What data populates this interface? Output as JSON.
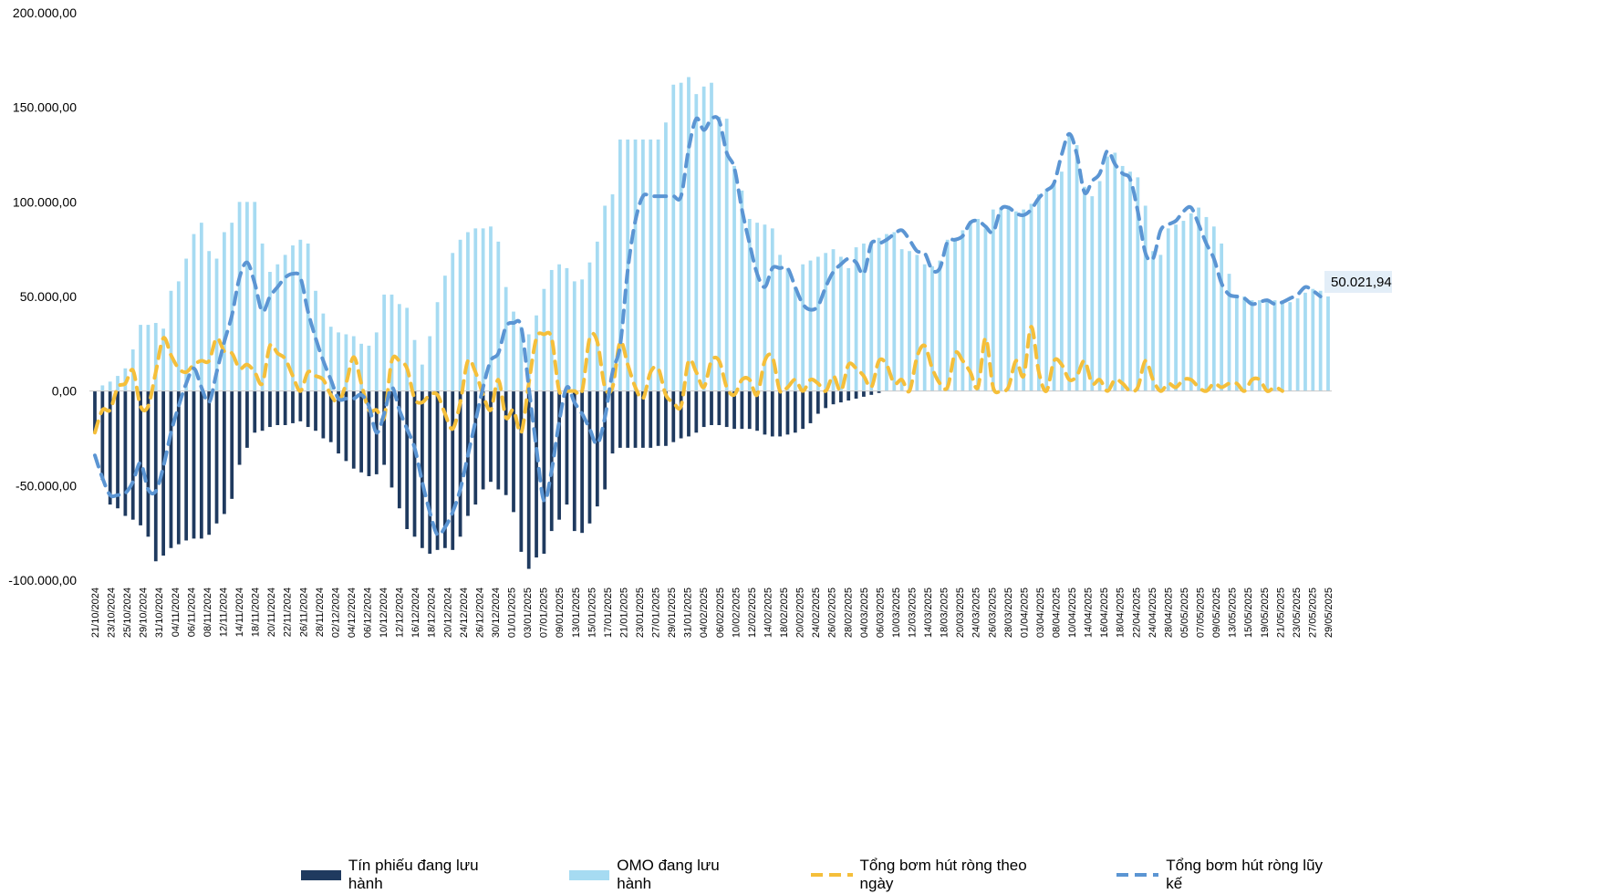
{
  "chart_data": {
    "type": "bar",
    "ylim": [
      -100000,
      200000
    ],
    "y_ticks": [
      {
        "value": 200000,
        "label": "200.000,00"
      },
      {
        "value": 150000,
        "label": "150.000,00"
      },
      {
        "value": 100000,
        "label": "100.000,00"
      },
      {
        "value": 50000,
        "label": "50.000,00"
      },
      {
        "value": 0,
        "label": "0,00"
      },
      {
        "value": -50000,
        "label": "-50.000,00"
      },
      {
        "value": -100000,
        "label": "-100.000,00"
      }
    ],
    "x_tick_labels": [
      "21/10/2024",
      "23/10/2024",
      "25/10/2024",
      "29/10/2024",
      "31/10/2024",
      "04/11/2024",
      "06/11/2024",
      "08/11/2024",
      "12/11/2024",
      "14/11/2024",
      "18/11/2024",
      "20/11/2024",
      "22/11/2024",
      "26/11/2024",
      "28/11/2024",
      "02/12/2024",
      "04/12/2024",
      "06/12/2024",
      "10/12/2024",
      "12/12/2024",
      "16/12/2024",
      "18/12/2024",
      "20/12/2024",
      "24/12/2024",
      "26/12/2024",
      "30/12/2024",
      "01/01/2025",
      "03/01/2025",
      "07/01/2025",
      "09/01/2025",
      "13/01/2025",
      "15/01/2025",
      "17/01/2025",
      "21/01/2025",
      "23/01/2025",
      "27/01/2025",
      "29/01/2025",
      "31/01/2025",
      "04/02/2025",
      "06/02/2025",
      "10/02/2025",
      "12/02/2025",
      "14/02/2025",
      "18/02/2025",
      "20/02/2025",
      "24/02/2025",
      "26/02/2025",
      "28/02/2025",
      "04/03/2025",
      "06/03/2025",
      "10/03/2025",
      "12/03/2025",
      "14/03/2025",
      "18/03/2025",
      "20/03/2025",
      "24/03/2025",
      "26/03/2025",
      "28/03/2025",
      "01/04/2025",
      "03/04/2025",
      "08/04/2025",
      "10/04/2025",
      "14/04/2025",
      "16/04/2025",
      "18/04/2025",
      "22/04/2025",
      "24/04/2025",
      "28/04/2025",
      "05/05/2025",
      "07/05/2025",
      "09/05/2025",
      "13/05/2025",
      "15/05/2025",
      "19/05/2025",
      "21/05/2025",
      "23/05/2025",
      "27/05/2025",
      "29/05/2025"
    ],
    "series": [
      {
        "name": "Tín phiếu đang lưu hành",
        "kind": "bar",
        "color": "#1f3a5f",
        "values": [
          -22000,
          -47000,
          -60000,
          -62000,
          -66000,
          -68000,
          -71000,
          -77000,
          -90000,
          -87000,
          -83000,
          -81000,
          -79000,
          -78000,
          -78000,
          -76000,
          -70000,
          -65000,
          -57000,
          -39000,
          -30000,
          -22000,
          -21000,
          -19000,
          -18000,
          -18000,
          -17000,
          -16000,
          -19000,
          -21000,
          -25000,
          -27000,
          -33000,
          -37000,
          -41000,
          -43000,
          -45000,
          -44000,
          -39000,
          -51000,
          -62000,
          -73000,
          -77000,
          -83000,
          -86000,
          -84000,
          -83000,
          -84000,
          -77000,
          -66000,
          -60000,
          -52000,
          -48000,
          -52000,
          -55000,
          -64000,
          -85000,
          -94000,
          -88000,
          -86000,
          -74000,
          -68000,
          -60000,
          -74000,
          -75000,
          -70000,
          -61000,
          -52000,
          -33000,
          -30000,
          -30000,
          -30000,
          -30000,
          -30000,
          -29000,
          -29000,
          -27000,
          -25000,
          -24000,
          -22000,
          -19000,
          -18000,
          -18000,
          -19000,
          -20000,
          -20000,
          -20000,
          -21000,
          -23000,
          -24000,
          -24000,
          -23000,
          -22000,
          -20000,
          -17000,
          -12000,
          -9000,
          -7000,
          -6000,
          -5000,
          -4000,
          -3000,
          -2000,
          -1000,
          0,
          0,
          0,
          0,
          0,
          0,
          0,
          0,
          0,
          0,
          0,
          0,
          0,
          0,
          0,
          0,
          0,
          0,
          0,
          0,
          0,
          0,
          0,
          0,
          0,
          0,
          0,
          0,
          0,
          0,
          0,
          0,
          0,
          0,
          0,
          0,
          0,
          0,
          0,
          0,
          0,
          0,
          0,
          0,
          0,
          0,
          0,
          0,
          0,
          0,
          0,
          0,
          0,
          0,
          0,
          0,
          0,
          0,
          0,
          0,
          0,
          0,
          0,
          0,
          0
        ]
      },
      {
        "name": "OMO đang lưu hành",
        "kind": "bar",
        "color": "#a6dbf2",
        "values": [
          0,
          3000,
          5000,
          8000,
          12000,
          22000,
          35000,
          35000,
          36000,
          33000,
          53000,
          58000,
          70000,
          83000,
          89000,
          74000,
          70000,
          84000,
          89000,
          100000,
          100000,
          100000,
          78000,
          63000,
          67000,
          72000,
          77000,
          80000,
          78000,
          53000,
          41000,
          34000,
          31000,
          30000,
          29000,
          25000,
          24000,
          31000,
          51000,
          51000,
          46000,
          44000,
          27000,
          14000,
          29000,
          47000,
          61000,
          73000,
          80000,
          84000,
          86000,
          86000,
          87000,
          79000,
          55000,
          42000,
          34000,
          30000,
          40000,
          54000,
          64000,
          67000,
          65000,
          58000,
          59000,
          68000,
          79000,
          98000,
          104000,
          133000,
          133000,
          133000,
          133000,
          133000,
          133000,
          142000,
          162000,
          163000,
          166000,
          157000,
          161000,
          163000,
          145000,
          144000,
          119000,
          106000,
          91000,
          89000,
          88000,
          86000,
          72000,
          65000,
          55000,
          67000,
          69000,
          71000,
          73000,
          75000,
          71000,
          65000,
          76000,
          78000,
          79000,
          81000,
          83000,
          84000,
          75000,
          74000,
          72000,
          67000,
          66000,
          69000,
          80000,
          81000,
          85000,
          90000,
          91000,
          86000,
          96000,
          97000,
          98000,
          95000,
          96000,
          99000,
          104000,
          107000,
          110000,
          116000,
          135000,
          130000,
          108000,
          103000,
          111000,
          124000,
          126000,
          119000,
          116000,
          113000,
          98000,
          74000,
          72000,
          86000,
          88000,
          90000,
          94000,
          97000,
          92000,
          87000,
          78000,
          62000,
          51000,
          50000,
          48000,
          48000,
          48000,
          48000,
          47000,
          47000,
          49000,
          52000,
          54000,
          53000,
          50022
        ]
      },
      {
        "name": "Tổng bơm hút ròng theo ngày",
        "kind": "line-dashed",
        "color": "#f5bf3a",
        "values": [
          -22000,
          -10000,
          -10000,
          2000,
          4000,
          11000,
          -8000,
          -8000,
          10000,
          28000,
          19000,
          12000,
          10000,
          14000,
          16000,
          16000,
          28000,
          21000,
          20000,
          12000,
          14000,
          10000,
          4000,
          24000,
          20000,
          17000,
          8000,
          0,
          10000,
          8000,
          6000,
          -2000,
          -6000,
          4000,
          18000,
          4000,
          -10000,
          -10000,
          -14000,
          16000,
          16000,
          12000,
          -4000,
          -6000,
          -2000,
          -2000,
          -12000,
          -20000,
          -6000,
          16000,
          10000,
          -2000,
          -10000,
          6000,
          -14000,
          -10000,
          -22000,
          4000,
          28000,
          30000,
          28000,
          0,
          0,
          0,
          0,
          28000,
          26000,
          2000,
          2000,
          26000,
          14000,
          2000,
          -4000,
          10000,
          12000,
          -2000,
          -6000,
          -8000,
          16000,
          10000,
          2000,
          16000,
          16000,
          2000,
          -2000,
          6000,
          6000,
          -2000,
          16000,
          18000,
          0,
          2000,
          6000,
          0,
          6000,
          4000,
          0,
          8000,
          0,
          14000,
          12000,
          8000,
          2000,
          16000,
          14000,
          4000,
          6000,
          0,
          18000,
          24000,
          12000,
          4000,
          2000,
          20000,
          16000,
          10000,
          2000,
          28000,
          2000,
          0,
          2000,
          16000,
          8000,
          34000,
          10000,
          0,
          16000,
          14000,
          6000,
          8000,
          16000,
          4000,
          6000,
          0,
          6000,
          4000,
          0,
          2000,
          16000,
          6000,
          0,
          4000,
          2000,
          6000,
          6000,
          2000,
          0,
          4000,
          2000,
          4000,
          4000,
          0,
          6000,
          6000,
          0,
          2000,
          0
        ]
      },
      {
        "name": "Tổng bơm hút ròng lũy kế",
        "kind": "line-dashed",
        "color": "#5b95d3",
        "values": [
          -34000,
          -46000,
          -55000,
          -55000,
          -54000,
          -48000,
          -38000,
          -52000,
          -53000,
          -40000,
          -22000,
          -8000,
          4000,
          12000,
          2000,
          -6000,
          10000,
          26000,
          40000,
          60000,
          68000,
          57000,
          42000,
          50000,
          55000,
          60000,
          62000,
          60000,
          42000,
          28000,
          16000,
          6000,
          -4000,
          -4000,
          -4000,
          -2000,
          -8000,
          -22000,
          -12000,
          2000,
          -10000,
          -20000,
          -30000,
          -48000,
          -64000,
          -76000,
          -72000,
          -64000,
          -52000,
          -34000,
          -16000,
          2000,
          16000,
          20000,
          34000,
          36000,
          34000,
          2000,
          -30000,
          -58000,
          -42000,
          -16000,
          2000,
          -6000,
          -12000,
          -20000,
          -28000,
          -14000,
          10000,
          24000,
          64000,
          90000,
          103000,
          103000,
          103000,
          103000,
          103000,
          103000,
          128000,
          144000,
          138000,
          144000,
          143000,
          126000,
          118000,
          96000,
          78000,
          62000,
          55000,
          65000,
          65000,
          65000,
          55000,
          46000,
          43000,
          45000,
          55000,
          63000,
          67000,
          70000,
          68000,
          62000,
          78000,
          78000,
          80000,
          83000,
          85000,
          80000,
          74000,
          73000,
          64000,
          65000,
          79000,
          80000,
          82000,
          89000,
          90000,
          87000,
          84000,
          96000,
          97000,
          94000,
          93000,
          96000,
          102000,
          106000,
          110000,
          125000,
          136000,
          125000,
          105000,
          111000,
          115000,
          127000,
          120000,
          115000,
          112000,
          95000,
          73000,
          70000,
          85000,
          88000,
          90000,
          95000,
          97000,
          88000,
          78000,
          70000,
          57000,
          51000,
          50000,
          49000,
          46000,
          47000,
          48000,
          46000,
          47000,
          49000,
          51000,
          55000,
          53000,
          50022
        ]
      }
    ],
    "end_label": "50.021,94",
    "grid": false,
    "legend_position": "bottom"
  }
}
